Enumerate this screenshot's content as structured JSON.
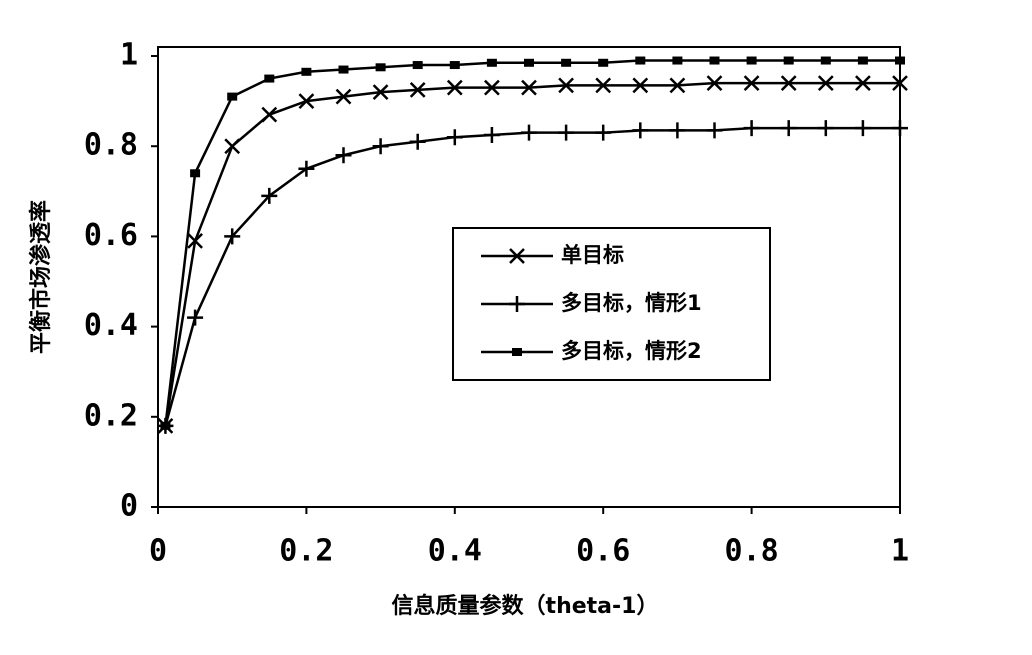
{
  "chart_data": {
    "type": "line",
    "xlabel": "信息质量参数（theta-1）",
    "ylabel": "平衡市场渗透率",
    "x": [
      0.01,
      0.05,
      0.1,
      0.15,
      0.2,
      0.25,
      0.3,
      0.35,
      0.4,
      0.45,
      0.5,
      0.55,
      0.6,
      0.65,
      0.7,
      0.75,
      0.8,
      0.85,
      0.9,
      0.95,
      1.0
    ],
    "series": [
      {
        "name": "单目标",
        "color": "#000000",
        "marker": "x",
        "values": [
          0.18,
          0.59,
          0.8,
          0.87,
          0.9,
          0.91,
          0.92,
          0.925,
          0.93,
          0.93,
          0.93,
          0.935,
          0.935,
          0.935,
          0.935,
          0.94,
          0.94,
          0.94,
          0.94,
          0.94,
          0.94
        ]
      },
      {
        "name": "多目标，情形1",
        "color": "#000000",
        "marker": "+",
        "values": [
          0.18,
          0.42,
          0.6,
          0.69,
          0.75,
          0.78,
          0.8,
          0.81,
          0.82,
          0.825,
          0.83,
          0.83,
          0.83,
          0.835,
          0.835,
          0.835,
          0.84,
          0.84,
          0.84,
          0.84,
          0.84
        ]
      },
      {
        "name": "多目标，情形2",
        "color": "#000000",
        "marker": "s",
        "values": [
          0.18,
          0.74,
          0.91,
          0.95,
          0.965,
          0.97,
          0.975,
          0.98,
          0.98,
          0.985,
          0.985,
          0.985,
          0.985,
          0.99,
          0.99,
          0.99,
          0.99,
          0.99,
          0.99,
          0.99,
          0.99
        ]
      }
    ],
    "xlim": [
      0,
      1
    ],
    "xticks": [
      0,
      0.2,
      0.4,
      0.6,
      0.8,
      1
    ],
    "ylim": [
      0,
      1.02
    ],
    "yticks": [
      0,
      0.2,
      0.4,
      0.6,
      0.8,
      1
    ],
    "grid": false
  }
}
